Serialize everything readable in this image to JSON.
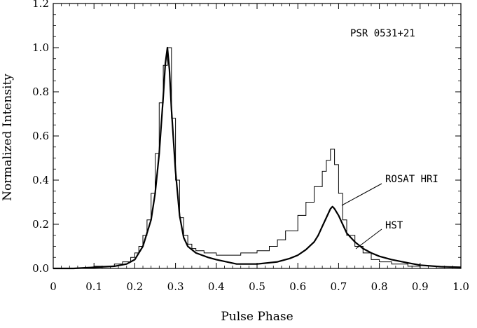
{
  "chart_data": {
    "type": "line",
    "title": "",
    "annotation": "PSR 0531+21",
    "xlabel": "Pulse Phase",
    "ylabel": "Normalized Intensity",
    "xlim": [
      0,
      1.0
    ],
    "ylim": [
      0,
      1.2
    ],
    "x_ticks": [
      "0",
      "0.1",
      "0.2",
      "0.3",
      "0.4",
      "0.5",
      "0.6",
      "0.7",
      "0.8",
      "0.9",
      "1.0"
    ],
    "y_ticks": [
      "0.0",
      "0.2",
      "0.4",
      "0.6",
      "0.8",
      "1.0",
      "1.2"
    ],
    "x_tick_values": [
      0,
      0.1,
      0.2,
      0.3,
      0.4,
      0.5,
      0.6,
      0.7,
      0.8,
      0.9,
      1.0
    ],
    "y_tick_values": [
      0,
      0.2,
      0.4,
      0.6,
      0.8,
      1.0,
      1.2
    ],
    "grid": false,
    "series": [
      {
        "name": "ROSAT HRI",
        "style": "histogram",
        "x": [
          0.0,
          0.05,
          0.1,
          0.13,
          0.15,
          0.17,
          0.19,
          0.2,
          0.21,
          0.22,
          0.23,
          0.24,
          0.25,
          0.26,
          0.27,
          0.28,
          0.29,
          0.3,
          0.31,
          0.32,
          0.33,
          0.34,
          0.35,
          0.37,
          0.4,
          0.43,
          0.46,
          0.5,
          0.53,
          0.55,
          0.57,
          0.6,
          0.62,
          0.64,
          0.66,
          0.67,
          0.68,
          0.69,
          0.7,
          0.71,
          0.72,
          0.74,
          0.76,
          0.78,
          0.8,
          0.83,
          0.87,
          0.9,
          0.95,
          1.0
        ],
        "values": [
          0.0,
          0.0,
          0.01,
          0.01,
          0.02,
          0.03,
          0.05,
          0.07,
          0.1,
          0.15,
          0.22,
          0.34,
          0.52,
          0.75,
          0.92,
          1.0,
          0.68,
          0.4,
          0.23,
          0.15,
          0.11,
          0.09,
          0.08,
          0.07,
          0.06,
          0.06,
          0.07,
          0.08,
          0.1,
          0.13,
          0.17,
          0.24,
          0.3,
          0.37,
          0.44,
          0.49,
          0.54,
          0.47,
          0.34,
          0.22,
          0.15,
          0.1,
          0.07,
          0.04,
          0.03,
          0.02,
          0.01,
          0.0,
          0.0,
          0.0
        ]
      },
      {
        "name": "HST",
        "style": "line",
        "x": [
          0.0,
          0.05,
          0.1,
          0.15,
          0.18,
          0.2,
          0.22,
          0.24,
          0.25,
          0.26,
          0.27,
          0.275,
          0.28,
          0.285,
          0.29,
          0.3,
          0.31,
          0.32,
          0.33,
          0.35,
          0.38,
          0.4,
          0.45,
          0.5,
          0.55,
          0.58,
          0.6,
          0.62,
          0.64,
          0.65,
          0.66,
          0.67,
          0.68,
          0.685,
          0.69,
          0.7,
          0.71,
          0.72,
          0.74,
          0.76,
          0.78,
          0.8,
          0.83,
          0.87,
          0.9,
          0.95,
          1.0
        ],
        "values": [
          0.0,
          0.0,
          0.005,
          0.01,
          0.02,
          0.04,
          0.1,
          0.22,
          0.34,
          0.52,
          0.78,
          0.93,
          1.0,
          0.9,
          0.72,
          0.44,
          0.24,
          0.14,
          0.1,
          0.07,
          0.05,
          0.04,
          0.02,
          0.02,
          0.03,
          0.045,
          0.06,
          0.085,
          0.12,
          0.15,
          0.19,
          0.23,
          0.27,
          0.28,
          0.27,
          0.24,
          0.2,
          0.16,
          0.12,
          0.09,
          0.07,
          0.055,
          0.04,
          0.025,
          0.015,
          0.008,
          0.005
        ]
      }
    ]
  }
}
